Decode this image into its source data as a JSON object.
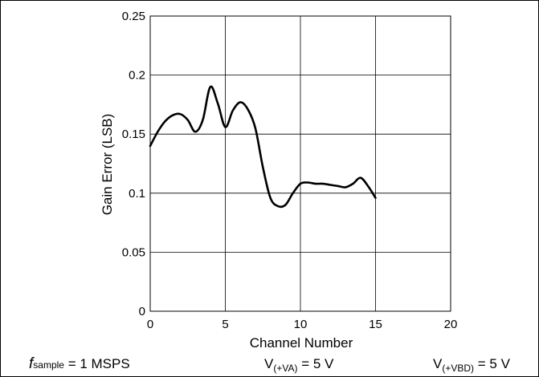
{
  "chart_data": {
    "type": "line",
    "xlabel": "Channel Number",
    "ylabel": "Gain Error (LSB)",
    "xlim": [
      0,
      20
    ],
    "ylim": [
      0,
      0.25
    ],
    "x_ticks": [
      "0",
      "5",
      "10",
      "15",
      "20"
    ],
    "y_ticks": [
      "0",
      "0.05",
      "0.1",
      "0.15",
      "0.2",
      "0.25"
    ],
    "grid": true,
    "series": [
      {
        "x": [
          0,
          0.5,
          1,
          1.5,
          2,
          2.5,
          3,
          3.5,
          4,
          4.5,
          5,
          5.5,
          6,
          6.5,
          7,
          7.5,
          8,
          8.5,
          9,
          9.5,
          10,
          10.5,
          11,
          11.5,
          12,
          12.5,
          13,
          13.5,
          14,
          14.5,
          15
        ],
        "values": [
          0.14,
          0.152,
          0.161,
          0.166,
          0.167,
          0.162,
          0.152,
          0.162,
          0.19,
          0.176,
          0.156,
          0.17,
          0.177,
          0.171,
          0.155,
          0.122,
          0.096,
          0.089,
          0.09,
          0.1,
          0.108,
          0.109,
          0.108,
          0.108,
          0.107,
          0.106,
          0.105,
          0.108,
          0.113,
          0.106,
          0.096
        ]
      }
    ]
  },
  "conditions": {
    "fs": {
      "sym": "f",
      "sub": "sample",
      "rest": " = 1 MSPS"
    },
    "va": {
      "sym": "V",
      "sub": "(+VA)",
      "rest": " = 5 V"
    },
    "vbd": {
      "sym": "V",
      "sub": "(+VBD)",
      "rest": " = 5 V"
    }
  }
}
